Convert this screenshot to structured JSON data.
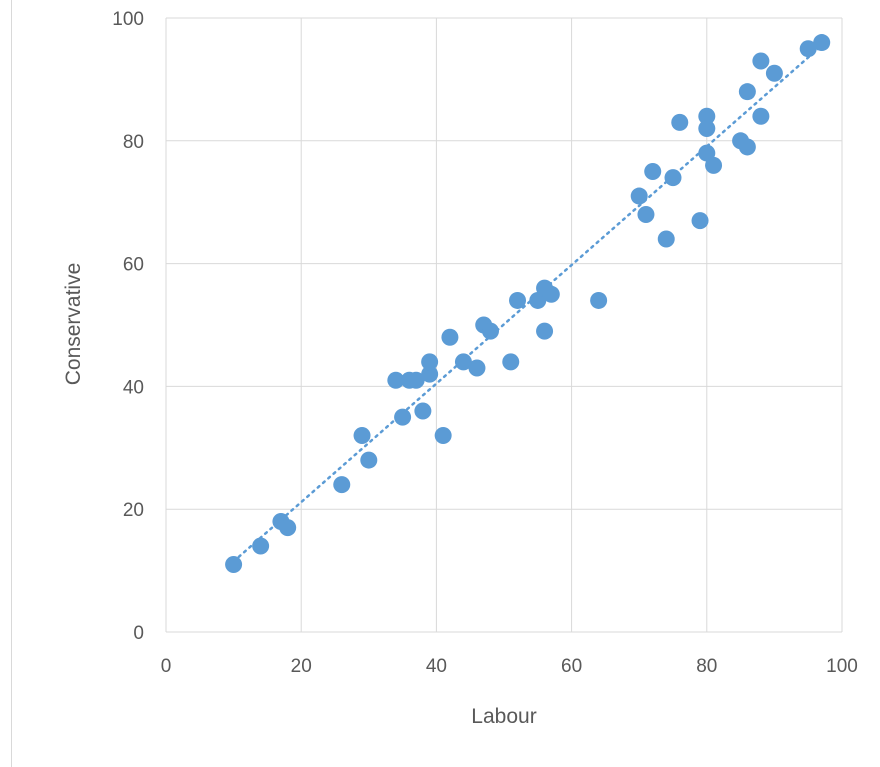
{
  "chart_data": {
    "type": "scatter",
    "title": "",
    "xlabel": "Labour",
    "ylabel": "Conservative",
    "xlim": [
      0,
      100
    ],
    "ylim": [
      0,
      100
    ],
    "xticks": [
      0,
      20,
      40,
      60,
      80,
      100
    ],
    "yticks": [
      0,
      20,
      40,
      60,
      80,
      100
    ],
    "grid": true,
    "legend": "none",
    "colors": {
      "marker": "#5b9bd5",
      "trendline": "#5b9bd5",
      "gridline": "#d9d9d9",
      "text": "#595959"
    },
    "trendline": {
      "type": "linear",
      "style": "dotted",
      "x": [
        10,
        97
      ],
      "y": [
        11.5,
        95.5
      ]
    },
    "series": [
      {
        "points": [
          [
            10,
            11
          ],
          [
            14,
            14
          ],
          [
            17,
            18
          ],
          [
            18,
            17
          ],
          [
            26,
            24
          ],
          [
            29,
            32
          ],
          [
            30,
            28
          ],
          [
            34,
            41
          ],
          [
            35,
            35
          ],
          [
            36,
            41
          ],
          [
            37,
            41
          ],
          [
            38,
            36
          ],
          [
            39,
            42
          ],
          [
            39,
            44
          ],
          [
            41,
            32
          ],
          [
            42,
            48
          ],
          [
            44,
            44
          ],
          [
            46,
            43
          ],
          [
            47,
            50
          ],
          [
            48,
            49
          ],
          [
            51,
            44
          ],
          [
            52,
            54
          ],
          [
            55,
            54
          ],
          [
            56,
            56
          ],
          [
            56,
            49
          ],
          [
            57,
            55
          ],
          [
            64,
            54
          ],
          [
            70,
            71
          ],
          [
            71,
            68
          ],
          [
            72,
            75
          ],
          [
            74,
            64
          ],
          [
            75,
            74
          ],
          [
            76,
            83
          ],
          [
            79,
            67
          ],
          [
            80,
            84
          ],
          [
            80,
            82
          ],
          [
            80,
            78
          ],
          [
            81,
            76
          ],
          [
            85,
            80
          ],
          [
            86,
            88
          ],
          [
            86,
            79
          ],
          [
            88,
            93
          ],
          [
            88,
            84
          ],
          [
            90,
            91
          ],
          [
            95,
            95
          ],
          [
            97,
            96
          ]
        ]
      }
    ]
  }
}
